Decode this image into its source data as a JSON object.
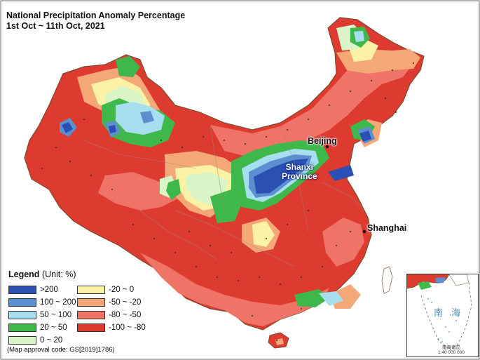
{
  "title": {
    "line1": "National Precipitation Anomaly Percentage",
    "line2": "1st Oct ~ 11th Oct, 2021"
  },
  "map_labels": {
    "beijing": "Beijing",
    "shanxi_line1": "Shanxi",
    "shanxi_line2": "Province",
    "shanghai": "Shanghai"
  },
  "legend": {
    "title": "Legend",
    "unit": "(Unit: %)",
    "items": [
      {
        "label": ">200",
        "color": "#2b4fb3"
      },
      {
        "label": "100 ~ 200",
        "color": "#5b8fd0"
      },
      {
        "label": "50 ~ 100",
        "color": "#a8dff0"
      },
      {
        "label": "20 ~ 50",
        "color": "#3eb84a"
      },
      {
        "label": "0 ~ 20",
        "color": "#d9f5c8"
      },
      {
        "label": "-20 ~ 0",
        "color": "#fbf2a6"
      },
      {
        "label": "-50 ~ -20",
        "color": "#f4a877"
      },
      {
        "label": "-80 ~ -50",
        "color": "#ef7366"
      },
      {
        "label": "-100 ~ -80",
        "color": "#dd3a30"
      }
    ]
  },
  "approval_code": "(Map approval code: GS[2019]1786)",
  "inset": {
    "sea_label": "南 海",
    "caption_line1": "南海诸岛",
    "caption_line2": "1:40 000 000"
  }
}
